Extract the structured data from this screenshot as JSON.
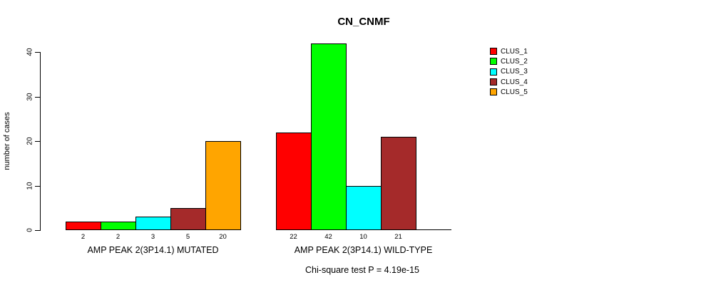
{
  "title": "CN_CNMF",
  "chart_data": {
    "type": "bar",
    "title": "CN_CNMF",
    "ylabel": "number of cases",
    "xlabel": "",
    "yticks": [
      0,
      10,
      20,
      30,
      40
    ],
    "ylim": [
      0,
      40
    ],
    "grid": false,
    "legend_position": "top-right",
    "categories": [
      "AMP PEAK 2(3P14.1) MUTATED",
      "AMP PEAK 2(3P14.1) WILD-TYPE"
    ],
    "series": [
      {
        "name": "CLUS_1",
        "color": "#FF0000",
        "values": [
          2,
          22
        ]
      },
      {
        "name": "CLUS_2",
        "color": "#00FF00",
        "values": [
          2,
          42
        ]
      },
      {
        "name": "CLUS_3",
        "color": "#00FFFF",
        "values": [
          3,
          10
        ]
      },
      {
        "name": "CLUS_4",
        "color": "#A52A2A",
        "values": [
          5,
          21
        ]
      },
      {
        "name": "CLUS_5",
        "color": "#FFA500",
        "values": [
          20,
          0
        ]
      }
    ],
    "bar_value_labels": [
      [
        "2",
        "2",
        "3",
        "5",
        "20"
      ],
      [
        "22",
        "42",
        "10",
        "21",
        ""
      ]
    ],
    "footnote": "Chi-square test P = 4.19e-15"
  }
}
